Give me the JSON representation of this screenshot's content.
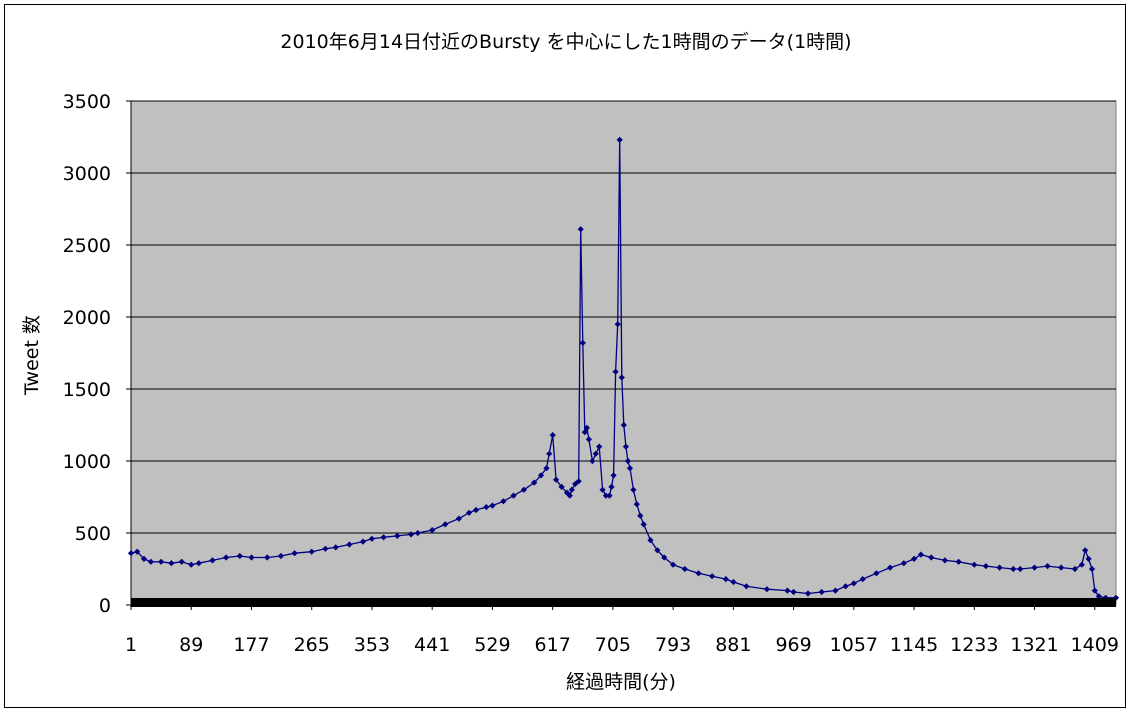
{
  "chart_data": {
    "type": "line",
    "title": "2010年6月14日付近のBursty を中心にした1時間のデータ(1時間)",
    "xlabel": "経過時間(分)",
    "ylabel": "Tweet 数",
    "ylim": [
      0,
      3500
    ],
    "xlim": [
      1,
      1440
    ],
    "yticks": [
      0,
      500,
      1000,
      1500,
      2000,
      2500,
      3000,
      3500
    ],
    "xticks": [
      1,
      89,
      177,
      265,
      353,
      441,
      529,
      617,
      705,
      793,
      881,
      969,
      1057,
      1145,
      1233,
      1321,
      1409
    ],
    "grid": true,
    "legend": "none",
    "colors": {
      "series": "#000080",
      "plot_bg": "#c0c0c0",
      "axis": "#000000"
    },
    "series": [
      {
        "x": [
          1,
          10,
          20,
          30,
          45,
          60,
          75,
          89,
          100,
          120,
          140,
          160,
          177,
          200,
          220,
          240,
          265,
          285,
          300,
          320,
          340,
          353,
          370,
          390,
          410,
          420,
          441,
          460,
          480,
          495,
          505,
          520,
          529,
          545,
          560,
          575,
          590,
          600,
          608,
          612,
          617,
          622,
          630,
          638,
          642,
          645,
          650,
          655,
          658,
          661,
          664,
          667,
          670,
          675,
          680,
          685,
          690,
          695,
          700,
          703,
          706,
          709,
          712,
          715,
          718,
          721,
          724,
          727,
          730,
          735,
          740,
          745,
          750,
          760,
          770,
          780,
          793,
          810,
          830,
          850,
          870,
          881,
          900,
          930,
          960,
          969,
          990,
          1010,
          1030,
          1045,
          1057,
          1070,
          1090,
          1110,
          1130,
          1145,
          1155,
          1170,
          1190,
          1210,
          1233,
          1250,
          1270,
          1290,
          1300,
          1321,
          1340,
          1360,
          1380,
          1390,
          1395,
          1400,
          1405,
          1409,
          1415,
          1425,
          1440
        ],
        "y": [
          360,
          370,
          320,
          300,
          300,
          290,
          300,
          280,
          290,
          310,
          330,
          340,
          330,
          330,
          340,
          360,
          370,
          390,
          400,
          420,
          440,
          460,
          470,
          480,
          490,
          500,
          520,
          560,
          600,
          640,
          660,
          680,
          690,
          720,
          760,
          800,
          850,
          900,
          950,
          1050,
          1180,
          870,
          820,
          780,
          760,
          800,
          840,
          860,
          2610,
          1820,
          1200,
          1230,
          1150,
          1000,
          1050,
          1100,
          800,
          760,
          760,
          820,
          900,
          1620,
          1950,
          3230,
          1580,
          1250,
          1100,
          1000,
          950,
          800,
          700,
          620,
          560,
          450,
          380,
          330,
          280,
          250,
          220,
          200,
          180,
          160,
          130,
          110,
          100,
          90,
          80,
          90,
          100,
          130,
          150,
          180,
          220,
          260,
          290,
          320,
          350,
          330,
          310,
          300,
          280,
          270,
          260,
          250,
          250,
          260,
          270,
          260,
          250,
          280,
          380,
          320,
          250,
          100,
          60,
          50,
          50
        ]
      }
    ]
  }
}
